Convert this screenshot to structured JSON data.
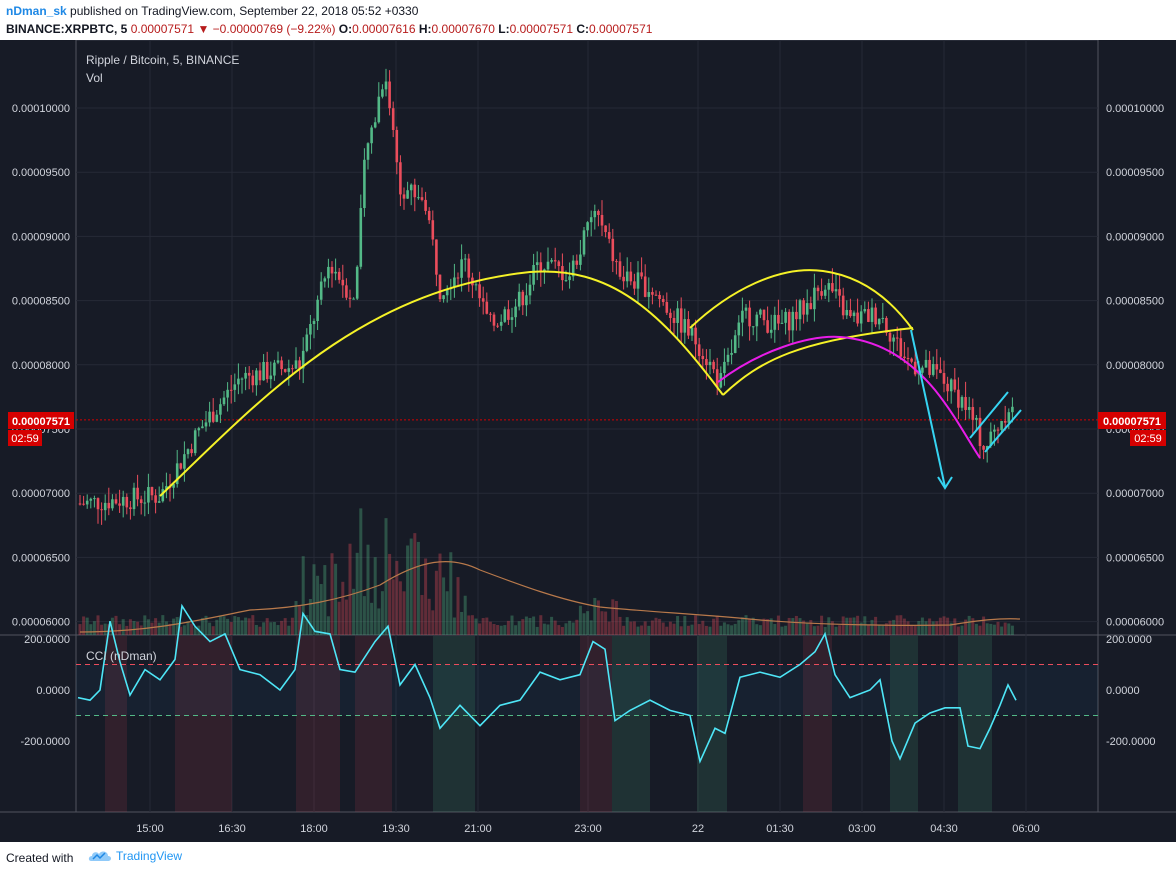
{
  "header": {
    "username": "nDman_sk",
    "published_text": " published on TradingView.com, September 22, 2018 05:52 +0330",
    "symbol": "BINANCE:XRPBTC, 5",
    "last": "0.00007571",
    "change_arrow": "▼",
    "change": "−0.00000769 (−9.22%)",
    "o_label": "O:",
    "o_value": "0.00007616",
    "h_label": "H:",
    "h_value": "0.00007670",
    "l_label": "L:",
    "l_value": "0.00007571",
    "c_label": "C:",
    "c_value": "0.00007571"
  },
  "chart": {
    "title": "Ripple / Bitcoin, 5, BINANCE",
    "vol_label": "Vol",
    "price_labels": [
      "0.00010000",
      "0.00009500",
      "0.00009000",
      "0.00008500",
      "0.00008000",
      "0.00007500",
      "0.00007000",
      "0.00006500",
      "0.00006000"
    ],
    "price_values": [
      0.0001,
      9.5e-05,
      9e-05,
      8.5e-05,
      8e-05,
      7.5e-05,
      7e-05,
      6.5e-05,
      6e-05
    ],
    "current_price": "0.00007571",
    "current_price_value": 7.571e-05,
    "countdown": "02:59",
    "cci_label": "CCI (nDman)",
    "cci_labels": [
      "200.0000",
      "0.0000",
      "-200.0000"
    ],
    "cci_values": [
      200,
      0,
      -200
    ],
    "cci_bands": [
      100,
      -100
    ],
    "time_labels": [
      "15:00",
      "16:30",
      "18:00",
      "19:30",
      "21:00",
      "23:00",
      "22",
      "01:30",
      "03:00",
      "04:30",
      "06:00"
    ],
    "colors": {
      "bg": "#171b26",
      "up": "#53b987",
      "down": "#eb4d5c",
      "cci": "#4ee6f7",
      "yellow": "#f5f227",
      "magenta": "#e81ce8",
      "cyan": "#36d4f2"
    }
  },
  "footer": {
    "created": "Created with",
    "brand": "TradingView"
  }
}
